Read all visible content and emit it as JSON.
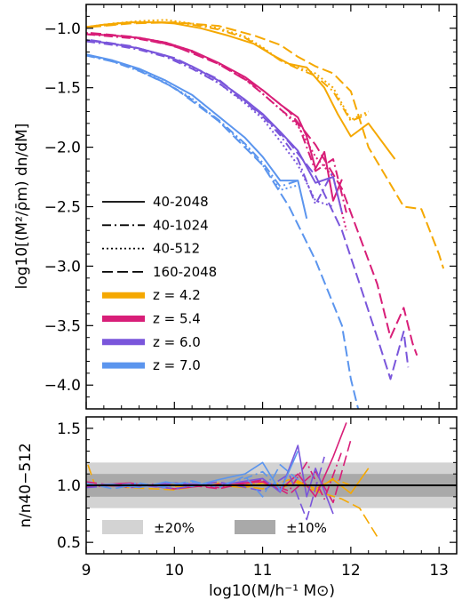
{
  "chart_data": [
    {
      "type": "line",
      "panel": "top",
      "ylabel": "log10[(M²/ρ̄m) dn/dM]",
      "xlim": [
        9,
        13.2
      ],
      "ylim": [
        -4.2,
        -0.8
      ],
      "xticks": [
        "9",
        "10",
        "11",
        "12",
        "13"
      ],
      "yticks": [
        "−1.0",
        "−1.5",
        "−2.0",
        "−2.5",
        "−3.0",
        "−3.5",
        "−4.0"
      ],
      "ytick_values": [
        -1.0,
        -1.5,
        -2.0,
        -2.5,
        -3.0,
        -3.5,
        -4.0
      ],
      "legend": {
        "placement": "lower-left",
        "styles": [
          {
            "label": "40-2048",
            "dash": "solid"
          },
          {
            "label": "40-1024",
            "dash": "dashdot"
          },
          {
            "label": "40-512",
            "dash": "dotted"
          },
          {
            "label": "160-2048",
            "dash": "dashed"
          }
        ],
        "redshifts": [
          {
            "label": "z = 4.2",
            "color": "#F5A800"
          },
          {
            "label": "z = 5.4",
            "color": "#D81E78"
          },
          {
            "label": "z = 6.0",
            "color": "#7A56DB"
          },
          {
            "label": "z = 7.0",
            "color": "#5B95EE"
          }
        ]
      },
      "series": [
        {
          "redshift": "z = 4.2",
          "color": "#F5A800",
          "dash": "solid",
          "x": [
            9.0,
            9.2,
            9.5,
            9.8,
            10.0,
            10.3,
            10.6,
            10.9,
            11.1,
            11.3,
            11.5,
            11.7,
            11.85,
            12.0,
            12.2,
            12.5
          ],
          "y": [
            -0.99,
            -0.97,
            -0.95,
            -0.95,
            -0.96,
            -1.0,
            -1.06,
            -1.13,
            -1.22,
            -1.3,
            -1.33,
            -1.5,
            -1.72,
            -1.91,
            -1.8,
            -2.1
          ]
        },
        {
          "redshift": "z = 4.2",
          "color": "#F5A800",
          "dash": "dashdot",
          "x": [
            9.0,
            9.3,
            9.6,
            9.9,
            10.2,
            10.5,
            10.8,
            11.0,
            11.2,
            11.4,
            11.6,
            11.8,
            12.0,
            12.2
          ],
          "y": [
            -0.99,
            -0.97,
            -0.95,
            -0.95,
            -0.97,
            -1.01,
            -1.08,
            -1.17,
            -1.27,
            -1.34,
            -1.4,
            -1.53,
            -1.78,
            -1.72
          ]
        },
        {
          "redshift": "z = 4.2",
          "color": "#F5A800",
          "dash": "dotted",
          "x": [
            9.0,
            9.3,
            9.6,
            9.9,
            10.2,
            10.5,
            10.8,
            11.0,
            11.2,
            11.4,
            11.6,
            11.8,
            12.0,
            12.2
          ],
          "y": [
            -0.99,
            -0.96,
            -0.94,
            -0.93,
            -0.96,
            -1.0,
            -1.07,
            -1.16,
            -1.27,
            -1.33,
            -1.38,
            -1.5,
            -1.77,
            -1.7
          ]
        },
        {
          "redshift": "z = 4.2",
          "color": "#F5A800",
          "dash": "dashed",
          "x": [
            9.05,
            9.5,
            10.0,
            10.5,
            10.9,
            11.2,
            11.4,
            11.6,
            11.8,
            12.0,
            12.2,
            12.4,
            12.6,
            12.8,
            13.0,
            13.05
          ],
          "y": [
            -0.99,
            -0.96,
            -0.95,
            -0.98,
            -1.06,
            -1.14,
            -1.24,
            -1.32,
            -1.38,
            -1.53,
            -2.0,
            -2.25,
            -2.5,
            -2.52,
            -2.9,
            -3.02
          ]
        },
        {
          "redshift": "z = 5.4",
          "color": "#D81E78",
          "dash": "solid",
          "x": [
            9.0,
            9.3,
            9.6,
            9.9,
            10.2,
            10.5,
            10.8,
            11.0,
            11.2,
            11.4,
            11.5,
            11.6,
            11.7,
            11.8,
            11.9
          ],
          "y": [
            -1.05,
            -1.06,
            -1.08,
            -1.12,
            -1.19,
            -1.29,
            -1.41,
            -1.52,
            -1.64,
            -1.75,
            -1.91,
            -2.18,
            -2.04,
            -2.45,
            -2.27
          ]
        },
        {
          "redshift": "z = 5.4",
          "color": "#D81E78",
          "dash": "dashdot",
          "x": [
            9.0,
            9.3,
            9.6,
            9.9,
            10.2,
            10.5,
            10.8,
            11.0,
            11.2,
            11.4,
            11.6,
            11.8,
            11.95
          ],
          "y": [
            -1.05,
            -1.07,
            -1.09,
            -1.13,
            -1.2,
            -1.3,
            -1.43,
            -1.55,
            -1.68,
            -1.8,
            -2.2,
            -2.1,
            -2.55
          ]
        },
        {
          "redshift": "z = 5.4",
          "color": "#D81E78",
          "dash": "dotted",
          "x": [
            9.0,
            9.3,
            9.6,
            9.9,
            10.2,
            10.5,
            10.8,
            11.0,
            11.2,
            11.4,
            11.6,
            11.8,
            11.95
          ],
          "y": [
            -1.04,
            -1.06,
            -1.08,
            -1.12,
            -1.19,
            -1.3,
            -1.42,
            -1.55,
            -1.68,
            -1.82,
            -2.08,
            -2.25,
            -2.7
          ]
        },
        {
          "redshift": "z = 5.4",
          "color": "#D81E78",
          "dash": "dashed",
          "x": [
            9.05,
            9.5,
            10.0,
            10.5,
            11.0,
            11.3,
            11.6,
            11.9,
            12.1,
            12.3,
            12.45,
            12.6,
            12.7,
            12.75
          ],
          "y": [
            -1.04,
            -1.07,
            -1.15,
            -1.3,
            -1.52,
            -1.7,
            -1.98,
            -2.35,
            -2.75,
            -3.15,
            -3.6,
            -3.35,
            -3.65,
            -3.75
          ]
        },
        {
          "redshift": "z = 6.0",
          "color": "#7A56DB",
          "dash": "solid",
          "x": [
            9.0,
            9.3,
            9.6,
            9.9,
            10.2,
            10.5,
            10.8,
            11.0,
            11.2,
            11.4,
            11.6,
            11.8,
            11.9
          ],
          "y": [
            -1.1,
            -1.13,
            -1.17,
            -1.23,
            -1.32,
            -1.44,
            -1.6,
            -1.72,
            -1.87,
            -2.03,
            -2.3,
            -2.25,
            -2.55
          ]
        },
        {
          "redshift": "z = 6.0",
          "color": "#7A56DB",
          "dash": "dashdot",
          "x": [
            9.0,
            9.3,
            9.6,
            9.9,
            10.2,
            10.5,
            10.8,
            11.0,
            11.2,
            11.4,
            11.6,
            11.8
          ],
          "y": [
            -1.11,
            -1.14,
            -1.18,
            -1.24,
            -1.34,
            -1.46,
            -1.62,
            -1.74,
            -1.9,
            -2.1,
            -2.48,
            -2.2
          ]
        },
        {
          "redshift": "z = 6.0",
          "color": "#7A56DB",
          "dash": "dotted",
          "x": [
            9.0,
            9.3,
            9.6,
            9.9,
            10.2,
            10.5,
            10.8,
            11.0,
            11.2,
            11.4,
            11.6,
            11.8
          ],
          "y": [
            -1.1,
            -1.13,
            -1.17,
            -1.23,
            -1.33,
            -1.46,
            -1.63,
            -1.76,
            -1.95,
            -2.15,
            -2.45,
            -2.5
          ]
        },
        {
          "redshift": "z = 6.0",
          "color": "#7A56DB",
          "dash": "dashed",
          "x": [
            9.05,
            9.5,
            10.0,
            10.5,
            11.0,
            11.3,
            11.6,
            11.9,
            12.1,
            12.3,
            12.45,
            12.6,
            12.65
          ],
          "y": [
            -1.1,
            -1.15,
            -1.25,
            -1.43,
            -1.73,
            -1.96,
            -2.24,
            -2.7,
            -3.15,
            -3.6,
            -3.95,
            -3.55,
            -3.85
          ]
        },
        {
          "redshift": "z = 7.0",
          "color": "#5B95EE",
          "dash": "solid",
          "x": [
            9.0,
            9.3,
            9.6,
            9.9,
            10.2,
            10.5,
            10.8,
            11.0,
            11.2,
            11.4,
            11.5
          ],
          "y": [
            -1.22,
            -1.27,
            -1.34,
            -1.44,
            -1.56,
            -1.74,
            -1.92,
            -2.08,
            -2.28,
            -2.28,
            -2.6
          ]
        },
        {
          "redshift": "z = 7.0",
          "color": "#5B95EE",
          "dash": "dashdot",
          "x": [
            9.0,
            9.3,
            9.6,
            9.9,
            10.2,
            10.5,
            10.8,
            11.0,
            11.2,
            11.4
          ],
          "y": [
            -1.23,
            -1.28,
            -1.36,
            -1.46,
            -1.6,
            -1.77,
            -1.97,
            -2.13,
            -2.33,
            -2.28
          ]
        },
        {
          "redshift": "z = 7.0",
          "color": "#5B95EE",
          "dash": "dotted",
          "x": [
            9.0,
            9.3,
            9.6,
            9.9,
            10.2,
            10.5,
            10.8,
            11.0,
            11.2,
            11.4
          ],
          "y": [
            -1.22,
            -1.28,
            -1.35,
            -1.46,
            -1.59,
            -1.78,
            -1.98,
            -2.15,
            -2.36,
            -2.32
          ]
        },
        {
          "redshift": "z = 7.0",
          "color": "#5B95EE",
          "dash": "dashed",
          "x": [
            9.05,
            9.5,
            10.0,
            10.5,
            11.0,
            11.3,
            11.6,
            11.9,
            12.0,
            12.1
          ],
          "y": [
            -1.23,
            -1.32,
            -1.5,
            -1.78,
            -2.15,
            -2.5,
            -2.95,
            -3.5,
            -3.95,
            -4.25
          ]
        }
      ]
    },
    {
      "type": "line",
      "panel": "bottom",
      "xlabel": "log10(M/h⁻¹ M⊙)",
      "ylabel": "n/n40−512",
      "xlim": [
        9,
        13.2
      ],
      "ylim": [
        0.4,
        1.6
      ],
      "xticks": [
        "9",
        "10",
        "11",
        "12",
        "13"
      ],
      "xtick_values": [
        9,
        10,
        11,
        12,
        13
      ],
      "yticks": [
        "0.5",
        "1.0",
        "1.5"
      ],
      "ytick_values": [
        0.5,
        1.0,
        1.5
      ],
      "bands": [
        {
          "label": "±20%",
          "range": [
            0.8,
            1.2
          ],
          "color": "#d3d3d3"
        },
        {
          "label": "±10%",
          "range": [
            0.9,
            1.1
          ],
          "color": "#a9a9a9"
        }
      ],
      "reference_line": 1.0,
      "series": [
        {
          "color": "#F5A800",
          "dash": "solid",
          "x": [
            9.0,
            9.5,
            10.0,
            10.5,
            10.8,
            11.0,
            11.2,
            11.4,
            11.6,
            11.8,
            12.0,
            12.2
          ],
          "y": [
            1.0,
            0.99,
            1.01,
            1.0,
            0.98,
            1.02,
            1.0,
            1.03,
            0.97,
            1.05,
            0.93,
            1.15
          ]
        },
        {
          "color": "#F5A800",
          "dash": "dashed",
          "x": [
            9.02,
            9.1,
            9.5,
            10.0,
            10.5,
            11.0,
            11.3,
            11.6,
            11.9,
            12.1,
            12.3
          ],
          "y": [
            1.18,
            1.0,
            0.98,
            0.96,
            1.02,
            0.97,
            1.05,
            0.95,
            0.88,
            0.8,
            0.55
          ]
        },
        {
          "color": "#F5A800",
          "dash": "dashdot",
          "x": [
            9.0,
            9.5,
            10.0,
            10.5,
            11.0,
            11.2,
            11.4,
            11.6,
            11.8,
            12.0
          ],
          "y": [
            1.0,
            1.01,
            0.99,
            1.0,
            1.02,
            0.97,
            1.04,
            0.95,
            1.06,
            1.0
          ]
        },
        {
          "color": "#D81E78",
          "dash": "solid",
          "x": [
            9.0,
            9.5,
            10.0,
            10.5,
            11.0,
            11.2,
            11.4,
            11.6,
            11.8,
            11.95
          ],
          "y": [
            1.0,
            1.02,
            0.97,
            1.01,
            1.03,
            0.96,
            1.1,
            0.9,
            1.25,
            1.55
          ]
        },
        {
          "color": "#D81E78",
          "dash": "dashed",
          "x": [
            9.0,
            9.5,
            10.0,
            10.5,
            11.0,
            11.3,
            11.6,
            11.8,
            12.0
          ],
          "y": [
            1.03,
            0.98,
            1.02,
            0.97,
            1.05,
            0.92,
            1.12,
            0.85,
            1.4
          ]
        },
        {
          "color": "#D81E78",
          "dash": "dashdot",
          "x": [
            9.0,
            9.5,
            10.0,
            10.5,
            11.0,
            11.3,
            11.5,
            11.7,
            11.9
          ],
          "y": [
            0.99,
            1.0,
            1.02,
            0.98,
            1.04,
            0.95,
            1.2,
            0.88,
            1.3
          ]
        },
        {
          "color": "#7A56DB",
          "dash": "solid",
          "x": [
            9.0,
            9.5,
            10.0,
            10.5,
            11.0,
            11.2,
            11.4,
            11.5,
            11.6,
            11.8
          ],
          "y": [
            1.0,
            0.99,
            1.02,
            1.0,
            1.06,
            0.94,
            1.35,
            0.9,
            1.15,
            0.75
          ]
        },
        {
          "color": "#7A56DB",
          "dash": "dashed",
          "x": [
            9.0,
            9.5,
            10.0,
            10.5,
            11.0,
            11.3,
            11.5,
            11.7
          ],
          "y": [
            0.98,
            1.01,
            0.97,
            1.03,
            0.95,
            1.1,
            0.7,
            1.25
          ]
        },
        {
          "color": "#5B95EE",
          "dash": "solid",
          "x": [
            9.0,
            9.3,
            9.6,
            9.9,
            10.2,
            10.5,
            10.8,
            11.0,
            11.2,
            11.4
          ],
          "y": [
            1.0,
            1.01,
            0.98,
            1.03,
            0.99,
            1.05,
            1.1,
            1.2,
            0.95,
            1.3
          ]
        },
        {
          "color": "#5B95EE",
          "dash": "dashed",
          "x": [
            9.0,
            9.3,
            9.6,
            9.9,
            10.2,
            10.5,
            10.8,
            11.0,
            11.2,
            11.4
          ],
          "y": [
            1.02,
            0.97,
            1.01,
            0.99,
            1.04,
            0.98,
            1.08,
            0.9,
            1.18,
            1.05
          ]
        },
        {
          "color": "#5B95EE",
          "dash": "dashdot",
          "x": [
            9.0,
            9.3,
            9.6,
            9.9,
            10.2,
            10.5,
            10.8,
            11.0,
            11.2
          ],
          "y": [
            1.0,
            1.0,
            1.02,
            0.98,
            1.03,
            1.0,
            1.06,
            1.12,
            0.96
          ]
        }
      ]
    }
  ]
}
